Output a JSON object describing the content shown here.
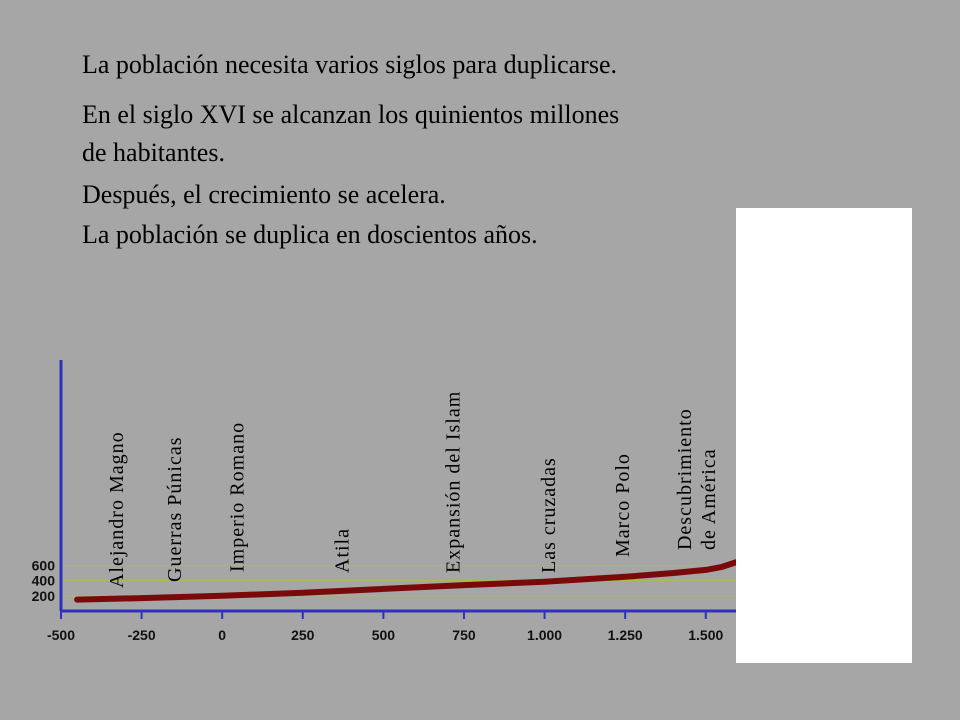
{
  "slide": {
    "title": "La población necesita varios siglos para duplicarse.",
    "paragraphs": [
      [
        "En el siglo XVI se alcanzan los quinientos millones",
        "de habitantes."
      ],
      [
        "Después, el crecimiento se acelera.",
        "La población se duplica en doscientos años."
      ]
    ]
  },
  "chart_data": {
    "type": "line",
    "x": [
      -450,
      -250,
      0,
      250,
      500,
      750,
      1000,
      1250,
      1400,
      1500,
      1550,
      1600
    ],
    "series": [
      {
        "color": "#7a0a0a",
        "values": [
          150,
          170,
          200,
          240,
          290,
          340,
          385,
          450,
          500,
          540,
          580,
          650
        ]
      }
    ],
    "xlim": [
      -500,
      1600
    ],
    "ylim": [
      0,
      3300
    ],
    "xticks": [
      -500,
      -250,
      0,
      250,
      500,
      750,
      {
        "value": 1000,
        "label": "1.000"
      },
      {
        "value": 1250,
        "label": "1.250"
      },
      {
        "value": 1500,
        "label": "1.500"
      }
    ],
    "yticks": [
      200,
      400,
      600
    ],
    "grid": true,
    "annotations": [
      {
        "x": -330,
        "lines": [
          "Alejandro Magno"
        ]
      },
      {
        "x": -150,
        "lines": [
          "Guerras Púnicas"
        ]
      },
      {
        "x": 45,
        "lines": [
          "Imperio Romano"
        ]
      },
      {
        "x": 370,
        "lines": [
          "Atila"
        ]
      },
      {
        "x": 715,
        "lines": [
          "Expansión del Islam"
        ]
      },
      {
        "x": 1010,
        "lines": [
          "Las cruzadas"
        ]
      },
      {
        "x": 1240,
        "lines": [
          "Marco Polo"
        ]
      },
      {
        "x": 1470,
        "lines": [
          "Descubrimiento",
          "de América"
        ]
      }
    ]
  }
}
